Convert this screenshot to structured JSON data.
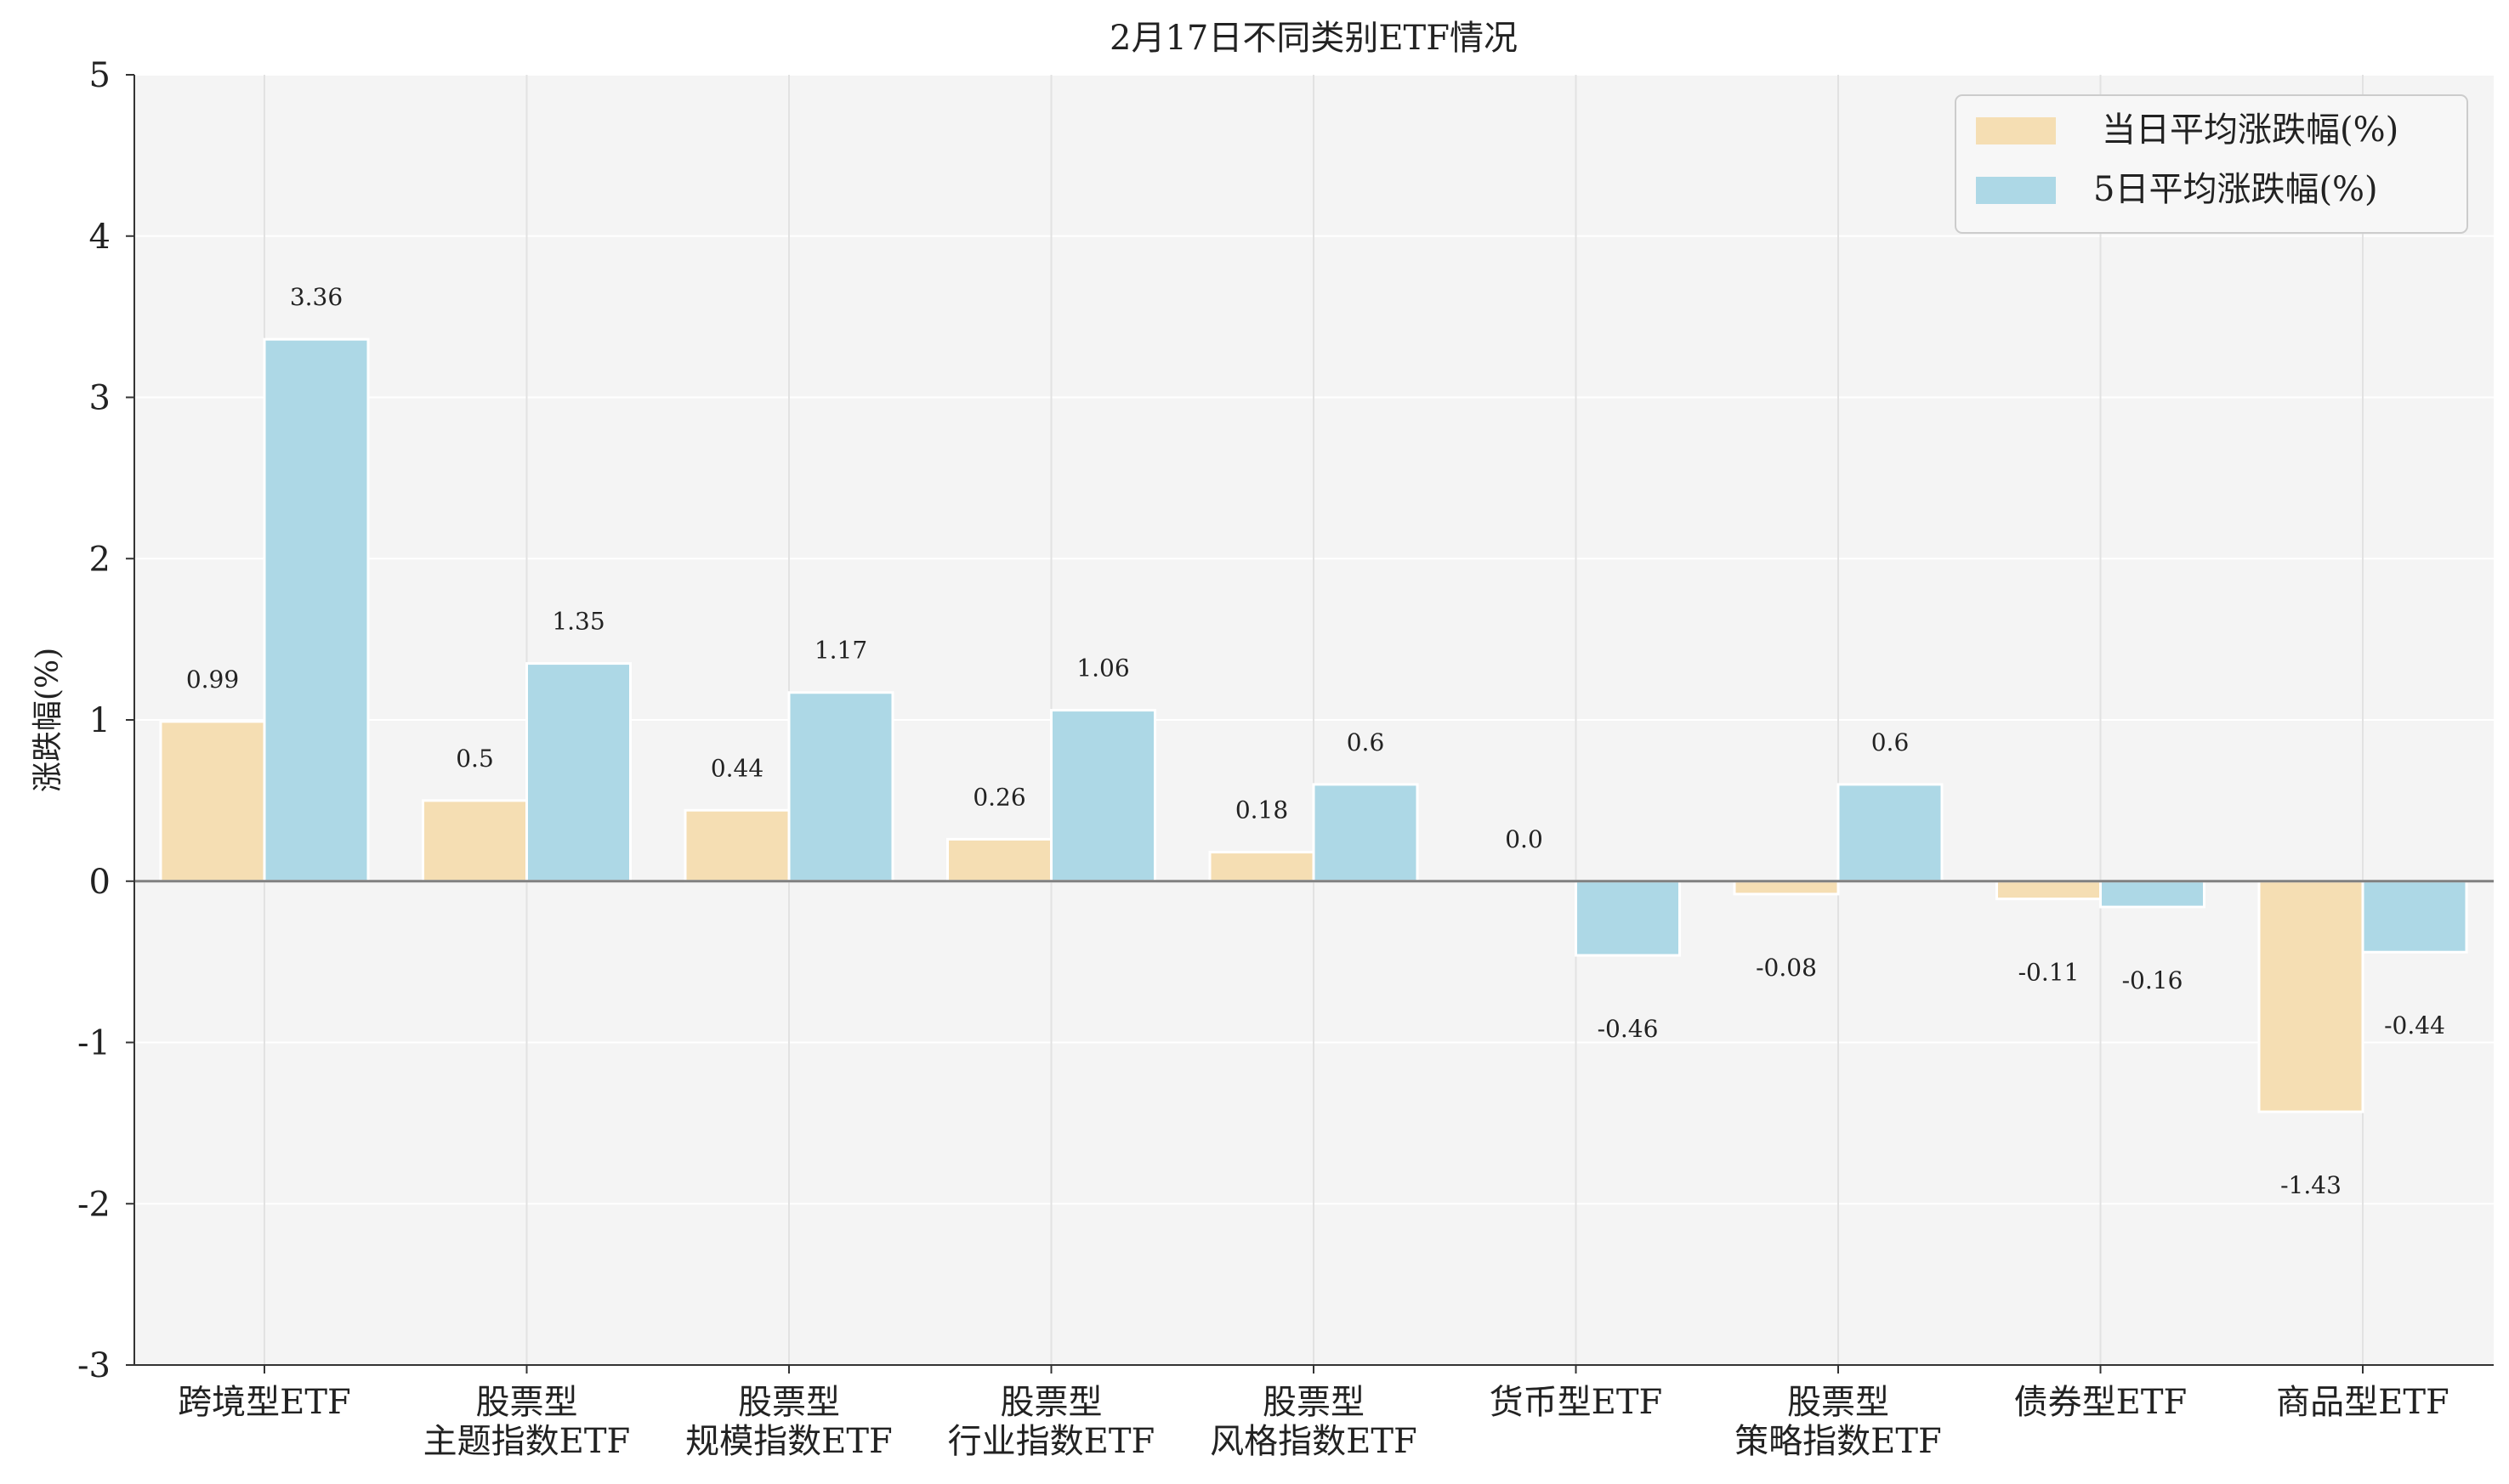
{
  "chart_data": {
    "type": "bar",
    "title": "2月17日不同类别ETF情况",
    "xlabel": "",
    "ylabel": "涨跌幅(%)",
    "ylim": [
      -3,
      5
    ],
    "yticks": [
      -3,
      -2,
      -1,
      0,
      1,
      2,
      3,
      4,
      5
    ],
    "grid": true,
    "legend_position": "top-right",
    "categories": [
      [
        "跨境型ETF"
      ],
      [
        "股票型",
        "主题指数ETF"
      ],
      [
        "股票型",
        "规模指数ETF"
      ],
      [
        "股票型",
        "行业指数ETF"
      ],
      [
        "股票型",
        "风格指数ETF"
      ],
      [
        "货币型ETF"
      ],
      [
        "股票型",
        "策略指数ETF"
      ],
      [
        "债券型ETF"
      ],
      [
        "商品型ETF"
      ]
    ],
    "series": [
      {
        "name": "当日平均涨跌幅(%)",
        "color": "#f5deb3",
        "values": [
          0.99,
          0.5,
          0.44,
          0.26,
          0.18,
          0.0,
          -0.08,
          -0.11,
          -1.43
        ],
        "labels": [
          "0.99",
          "0.5",
          "0.44",
          "0.26",
          "0.18",
          "0.0",
          "-0.08",
          "-0.11",
          "-1.43"
        ]
      },
      {
        "name": "5日平均涨跌幅(%)",
        "color": "#add8e6",
        "values": [
          3.36,
          1.35,
          1.17,
          1.06,
          0.6,
          -0.46,
          0.6,
          -0.16,
          -0.44
        ],
        "labels": [
          "3.36",
          "1.35",
          "1.17",
          "1.06",
          "0.6",
          "-0.46",
          "0.6",
          "-0.16",
          "-0.44"
        ]
      }
    ]
  }
}
